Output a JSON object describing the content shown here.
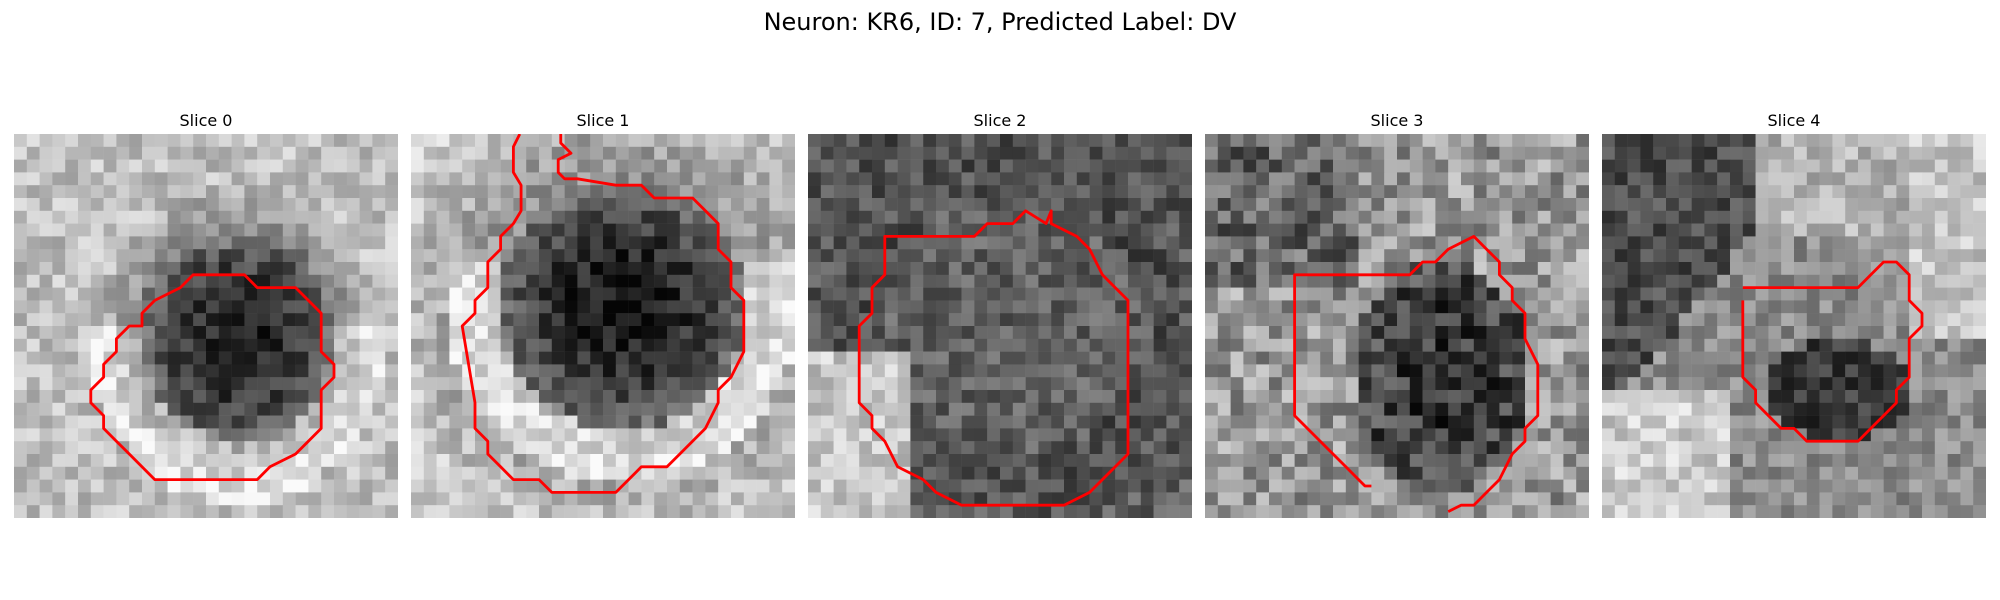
{
  "figure": {
    "title": "Neuron: KR6, ID: 7, Predicted Label: DV"
  },
  "style": {
    "contour_color": "#ff0000",
    "colormap": "gray"
  },
  "panels": [
    {
      "title": "Slice 0",
      "has_contour": true
    },
    {
      "title": "Slice 1",
      "has_contour": true
    },
    {
      "title": "Slice 2",
      "has_contour": true
    },
    {
      "title": "Slice 3",
      "has_contour": true
    },
    {
      "title": "Slice 4",
      "has_contour": true
    }
  ]
}
